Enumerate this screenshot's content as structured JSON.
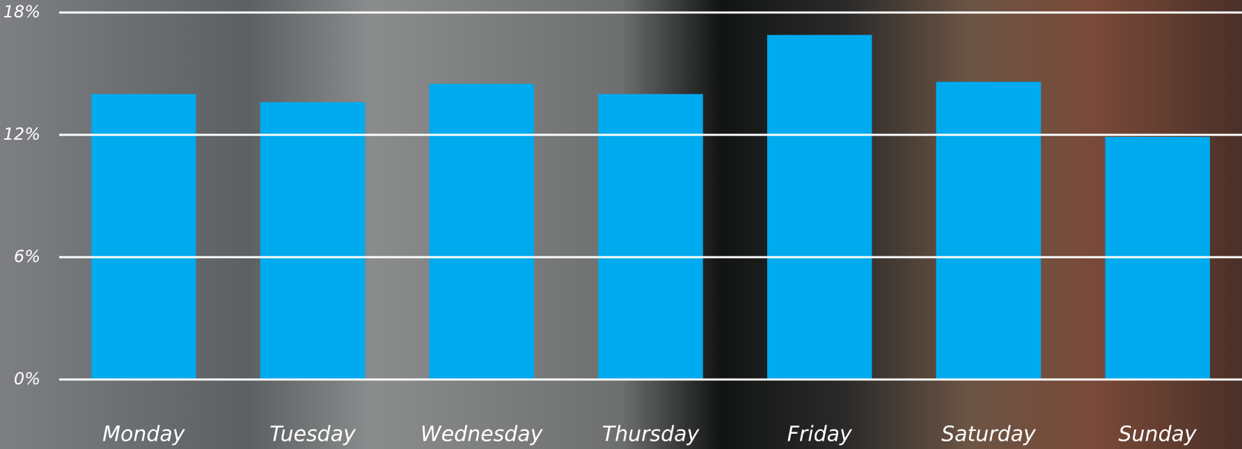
{
  "chart_data": {
    "type": "bar",
    "categories": [
      "Monday",
      "Tuesday",
      "Wednesday",
      "Thursday",
      "Friday",
      "Saturday",
      "Sunday"
    ],
    "values": [
      14.0,
      13.6,
      14.5,
      14.0,
      16.9,
      14.6,
      11.9
    ],
    "color": "#00aaee",
    "ylim": [
      0,
      18
    ],
    "yticks": [
      {
        "value": 0,
        "label": "0%"
      },
      {
        "value": 6,
        "label": "6%"
      },
      {
        "value": 12,
        "label": "12%"
      },
      {
        "value": 18,
        "label": "18%"
      }
    ],
    "grid": true
  }
}
